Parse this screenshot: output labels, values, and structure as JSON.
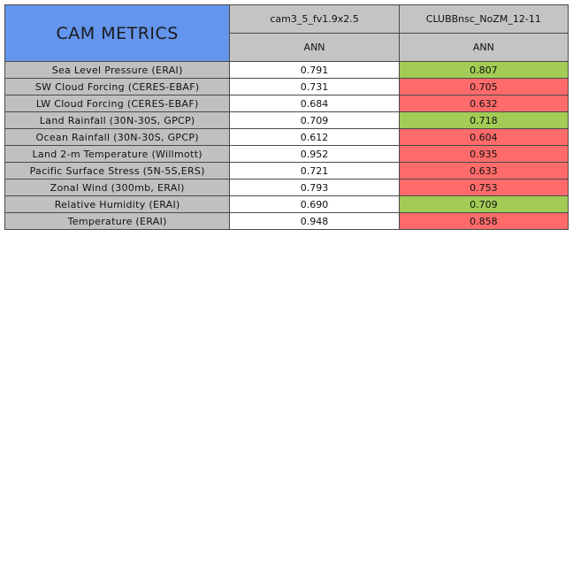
{
  "chart_data": {
    "type": "table",
    "title": "CAM METRICS",
    "columns": [
      {
        "name": "cam3_5_fv1.9x2.5",
        "period": "ANN"
      },
      {
        "name": "CLUBBnsc_NoZM_12-11",
        "period": "ANN"
      }
    ],
    "rows": [
      {
        "metric": "Sea Level Pressure (ERAI)",
        "values": [
          "0.791",
          "0.807"
        ],
        "status": [
          "none",
          "better"
        ]
      },
      {
        "metric": "SW Cloud Forcing (CERES-EBAF)",
        "values": [
          "0.731",
          "0.705"
        ],
        "status": [
          "none",
          "worse"
        ]
      },
      {
        "metric": "LW Cloud Forcing (CERES-EBAF)",
        "values": [
          "0.684",
          "0.632"
        ],
        "status": [
          "none",
          "worse"
        ]
      },
      {
        "metric": "Land Rainfall (30N-30S, GPCP)",
        "values": [
          "0.709",
          "0.718"
        ],
        "status": [
          "none",
          "better"
        ]
      },
      {
        "metric": "Ocean Rainfall (30N-30S, GPCP)",
        "values": [
          "0.612",
          "0.604"
        ],
        "status": [
          "none",
          "worse"
        ]
      },
      {
        "metric": "Land 2-m Temperature (Willmott)",
        "values": [
          "0.952",
          "0.935"
        ],
        "status": [
          "none",
          "worse"
        ]
      },
      {
        "metric": "Pacific Surface Stress (5N-5S,ERS)",
        "values": [
          "0.721",
          "0.633"
        ],
        "status": [
          "none",
          "worse"
        ]
      },
      {
        "metric": "Zonal Wind (300mb, ERAI)",
        "values": [
          "0.793",
          "0.753"
        ],
        "status": [
          "none",
          "worse"
        ]
      },
      {
        "metric": "Relative Humidity (ERAI)",
        "values": [
          "0.690",
          "0.709"
        ],
        "status": [
          "none",
          "better"
        ]
      },
      {
        "metric": "Temperature (ERAI)",
        "values": [
          "0.948",
          "0.858"
        ],
        "status": [
          "none",
          "worse"
        ]
      }
    ],
    "colors": {
      "title_bg": "#6495ed",
      "header_bg": "#c4c4c4",
      "label_bg": "#c0c0c0",
      "better": "#a2cc55",
      "worse": "#ff6b6b",
      "none": "#ffffff"
    }
  }
}
